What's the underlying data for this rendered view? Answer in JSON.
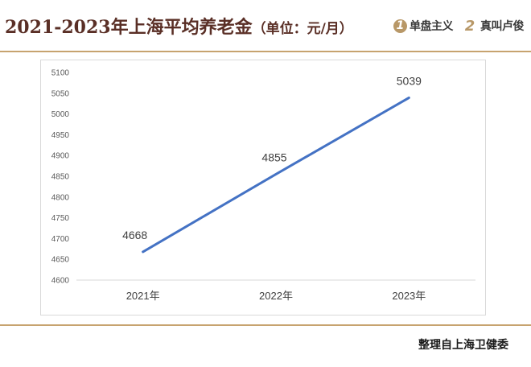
{
  "header": {
    "title": "2021-2023年上海平均养老金",
    "unit": "（单位：元/月）",
    "brand1": {
      "num": "1",
      "label": "单盘主义"
    },
    "brand2": {
      "num": "2",
      "label": "真叫卢俊"
    }
  },
  "footer": {
    "source": "整理自上海卫健委"
  },
  "chart_data": {
    "type": "line",
    "title": "2021-2023年上海平均养老金（单位：元/月）",
    "categories": [
      "2021年",
      "2022年",
      "2023年"
    ],
    "series": [
      {
        "values": [
          4668,
          4855,
          5039
        ],
        "color": "#4472c4"
      }
    ],
    "data_labels": [
      "4668",
      "4855",
      "5039"
    ],
    "ylim": [
      4600,
      5100
    ],
    "yticks": [
      4600,
      4650,
      4700,
      4750,
      4800,
      4850,
      4900,
      4950,
      5000,
      5050,
      5100
    ],
    "grid": false,
    "legend": "none"
  }
}
